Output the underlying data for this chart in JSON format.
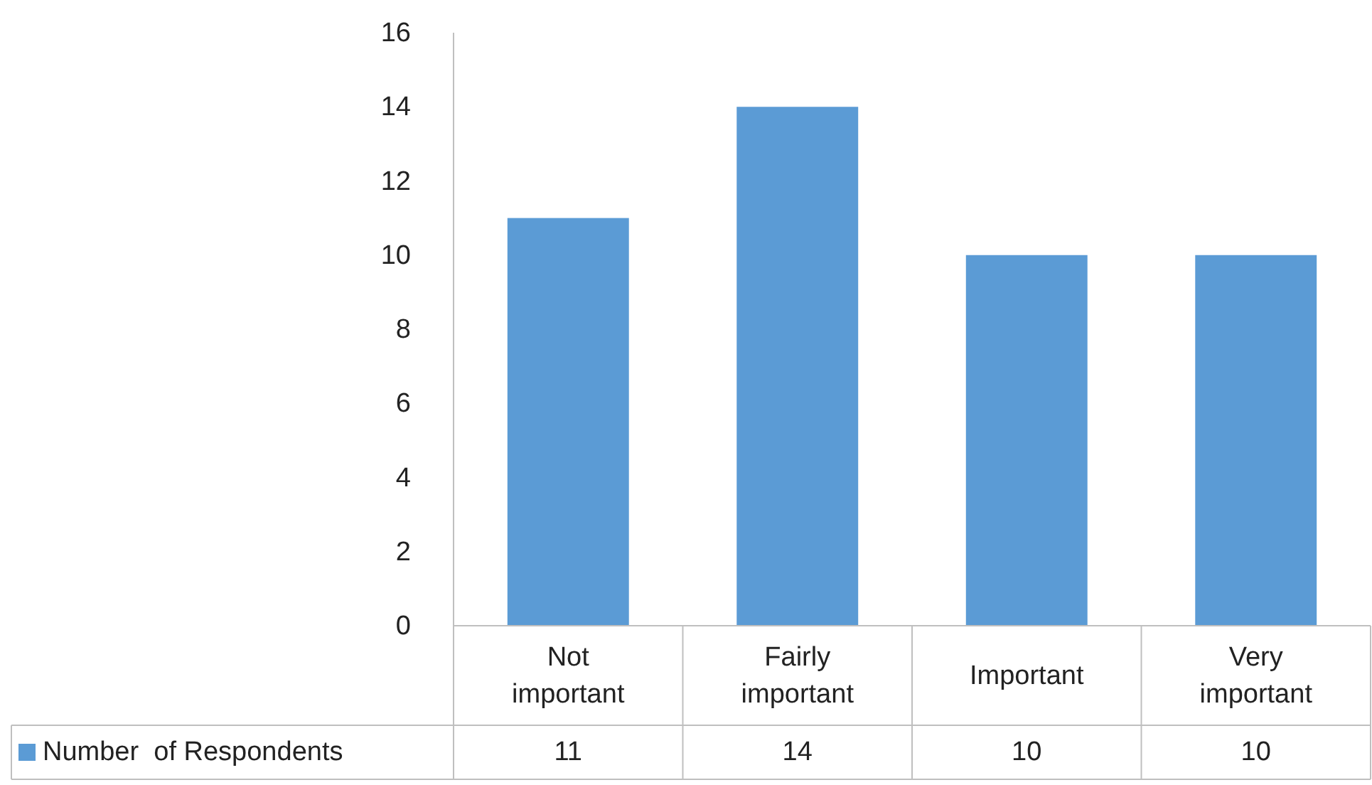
{
  "chart_data": {
    "type": "bar",
    "categories": [
      "Not important",
      "Fairly important",
      "Important",
      "Very important"
    ],
    "series": [
      {
        "name": "Number  of Respondents",
        "color": "#5b9bd5",
        "values": [
          11,
          14,
          10,
          10
        ]
      }
    ],
    "ylim": [
      0,
      16
    ],
    "yticks": [
      0,
      2,
      4,
      6,
      8,
      10,
      12,
      14,
      16
    ],
    "grid": false,
    "legend": "bottom",
    "data_labels": true
  }
}
